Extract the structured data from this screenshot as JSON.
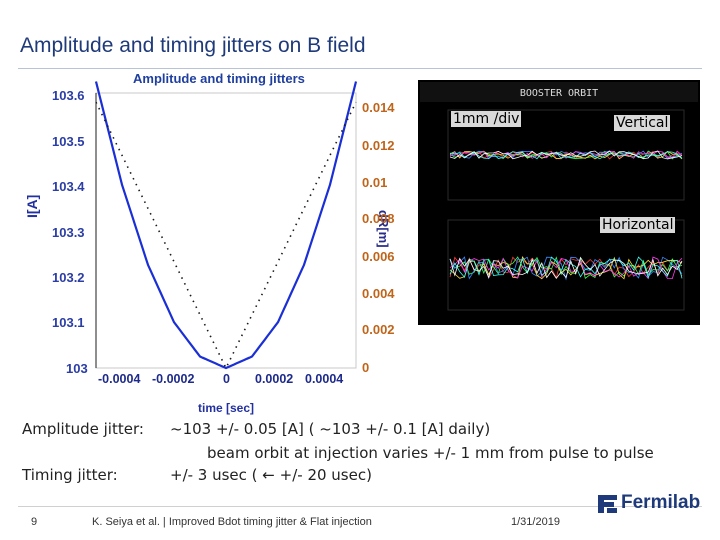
{
  "slide": {
    "title": "Amplitude and timing jitters on B field",
    "footer_page": "9",
    "footer_author": "K. Seiya et al. | Improved Bdot timing jitter & Flat injection",
    "footer_date": "1/31/2019",
    "logo_text": "Fermilab"
  },
  "chart_data": {
    "type": "line",
    "title": "Amplitude and timing jitters",
    "xlabel": "time [sec]",
    "ylabel": "I[A]",
    "y2label": "dR[m]",
    "xlim": [
      -0.0005,
      0.0005
    ],
    "ylim": [
      103.0,
      103.6
    ],
    "y2lim": [
      0,
      0.015
    ],
    "x_ticks": [
      "-0.0004",
      "-0.0002",
      "0",
      "0.0002",
      "0.0004"
    ],
    "y_ticks": [
      "103",
      "103.1",
      "103.2",
      "103.3",
      "103.4",
      "103.5",
      "103.6"
    ],
    "y2_ticks": [
      "0",
      "0.002",
      "0.004",
      "0.006",
      "0.008",
      "0.01",
      "0.012",
      "0.014"
    ],
    "series": [
      {
        "axis": "left",
        "style": "solid",
        "color": "#1a2fd6",
        "x": [
          -0.0005,
          -0.0004,
          -0.0003,
          -0.0002,
          -0.0001,
          0,
          0.0001,
          0.0002,
          0.0003,
          0.0004,
          0.0005
        ],
        "y": [
          103.625,
          103.4,
          103.225,
          103.1,
          103.025,
          103.0,
          103.025,
          103.1,
          103.225,
          103.4,
          103.625
        ]
      },
      {
        "axis": "right",
        "style": "dotted",
        "color": "#1a1a1a",
        "x": [
          -0.0005,
          -0.0004,
          -0.0003,
          -0.0002,
          -0.0001,
          0,
          0.0001,
          0.0002,
          0.0003,
          0.0004,
          0.0005
        ],
        "y": [
          0.0145,
          0.0116,
          0.0087,
          0.0058,
          0.0029,
          0.0,
          0.0029,
          0.0058,
          0.0087,
          0.0116,
          0.0145
        ]
      }
    ]
  },
  "scope_image": {
    "header": "BOOSTER ORBIT",
    "label_scale": "1mm /div",
    "label_vertical": "Vertical",
    "label_horizontal": "Horizontal",
    "colors": [
      "#ff3b3b",
      "#3bff5a",
      "#3b8bff",
      "#ffe03b",
      "#ff3bf0",
      "#3bfff0",
      "#ffffff"
    ]
  },
  "text": {
    "amp_label": "Amplitude jitter:",
    "amp_value": "~103 +/- 0.05 [A] ( ~103 +/- 0.1 [A] daily)",
    "orbit_line": "beam orbit at injection varies +/- 1 mm from pulse to pulse",
    "timing_label": "Timing jitter:",
    "timing_value": "+/- 3 usec ( ← +/- 20 usec)"
  }
}
